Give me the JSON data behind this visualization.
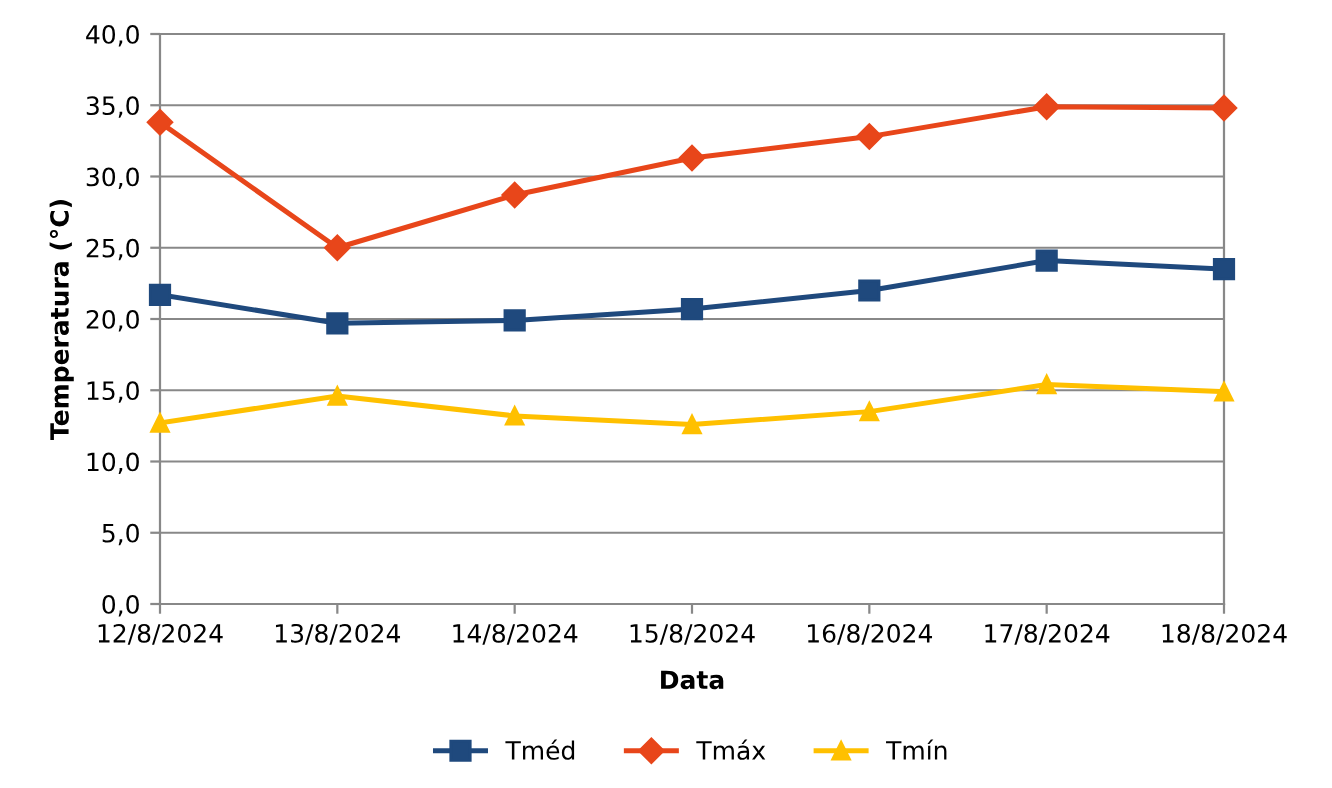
{
  "chart_data": {
    "type": "line",
    "xlabel": "Data",
    "ylabel": "Temperatura (°C)",
    "categories": [
      "12/8/2024",
      "13/8/2024",
      "14/8/2024",
      "15/8/2024",
      "16/8/2024",
      "17/8/2024",
      "18/8/2024"
    ],
    "series": [
      {
        "name": "Tméd",
        "color": "#1f497d",
        "marker": "square",
        "values": [
          21.7,
          19.7,
          19.9,
          20.7,
          22.0,
          24.1,
          23.5
        ]
      },
      {
        "name": "Tmáx",
        "color": "#e8461a",
        "marker": "diamond",
        "values": [
          33.8,
          25.0,
          28.7,
          31.3,
          32.8,
          34.9,
          34.8
        ]
      },
      {
        "name": "Tmín",
        "color": "#ffc000",
        "marker": "triangle",
        "values": [
          12.7,
          14.6,
          13.2,
          12.6,
          13.5,
          15.4,
          14.9
        ]
      }
    ],
    "ylim": [
      0,
      40
    ],
    "yticks": [
      {
        "value": 0,
        "label": "0,0"
      },
      {
        "value": 5,
        "label": "5,0"
      },
      {
        "value": 10,
        "label": "10,0"
      },
      {
        "value": 15,
        "label": "15,0"
      },
      {
        "value": 20,
        "label": "20,0"
      },
      {
        "value": 25,
        "label": "25,0"
      },
      {
        "value": 30,
        "label": "30,0"
      },
      {
        "value": 35,
        "label": "35,0"
      },
      {
        "value": 40,
        "label": "40,0"
      }
    ],
    "grid": "y",
    "legend": "bottom",
    "line_style": "solid"
  }
}
